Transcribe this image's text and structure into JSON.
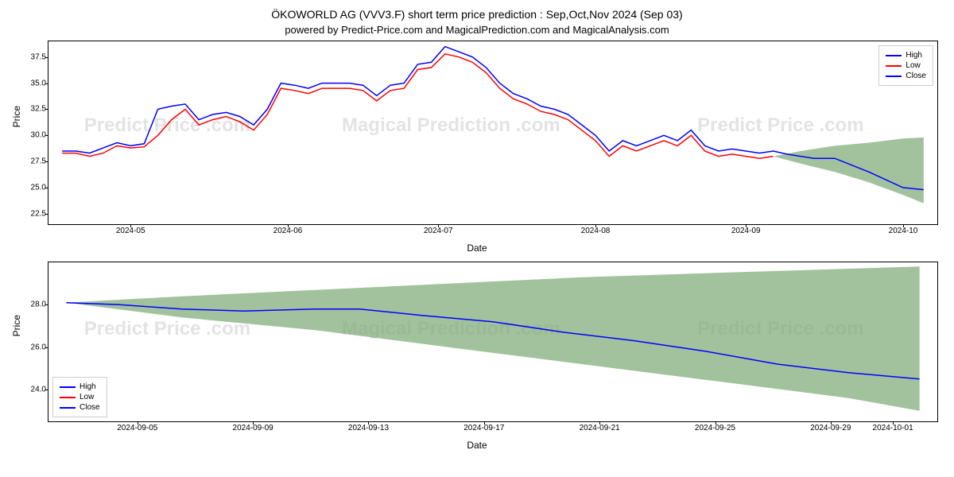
{
  "title": "ÖKOWORLD AG (VVV3.F) short term price prediction : Sep,Oct,Nov 2024 (Sep 03)",
  "subtitle": "powered by Predict-Price.com and MagicalPrediction.com and MagicalAnalysis.com",
  "watermarks": {
    "text1": "Predict Price .com",
    "text2": "Magical Prediction .com",
    "text3": "Predict Price .com"
  },
  "top_chart": {
    "type": "line_with_area",
    "ylabel": "Price",
    "xlabel": "Date",
    "ylim": [
      21.5,
      39
    ],
    "xlim": [
      0,
      130
    ],
    "y_ticks": [
      22.5,
      25.0,
      27.5,
      30.0,
      32.5,
      35.0,
      37.5
    ],
    "x_ticks": [
      {
        "pos": 12,
        "label": "2024-05"
      },
      {
        "pos": 35,
        "label": "2024-06"
      },
      {
        "pos": 57,
        "label": "2024-07"
      },
      {
        "pos": 80,
        "label": "2024-08"
      },
      {
        "pos": 102,
        "label": "2024-09"
      },
      {
        "pos": 125,
        "label": "2024-10"
      }
    ],
    "legend_position": "top-right",
    "legend_items": [
      {
        "color": "#0000ff",
        "label": "High"
      },
      {
        "color": "#ff0000",
        "label": "Low"
      },
      {
        "color": "#0000ff",
        "label": "Close"
      }
    ],
    "series_high": {
      "color": "#0000ff",
      "width": 1.5,
      "points": [
        [
          2,
          28.5
        ],
        [
          4,
          28.5
        ],
        [
          6,
          28.3
        ],
        [
          8,
          28.8
        ],
        [
          10,
          29.3
        ],
        [
          12,
          29.0
        ],
        [
          14,
          29.2
        ],
        [
          16,
          32.5
        ],
        [
          18,
          32.8
        ],
        [
          20,
          33.0
        ],
        [
          22,
          31.5
        ],
        [
          24,
          32.0
        ],
        [
          26,
          32.2
        ],
        [
          28,
          31.8
        ],
        [
          30,
          31.0
        ],
        [
          32,
          32.5
        ],
        [
          34,
          35.0
        ],
        [
          36,
          34.8
        ],
        [
          38,
          34.5
        ],
        [
          40,
          35.0
        ],
        [
          42,
          35.0
        ],
        [
          44,
          35.0
        ],
        [
          46,
          34.8
        ],
        [
          48,
          33.8
        ],
        [
          50,
          34.8
        ],
        [
          52,
          35.0
        ],
        [
          54,
          36.8
        ],
        [
          56,
          37.0
        ],
        [
          58,
          38.5
        ],
        [
          60,
          38.0
        ],
        [
          62,
          37.5
        ],
        [
          64,
          36.5
        ],
        [
          66,
          35.0
        ],
        [
          68,
          34.0
        ],
        [
          70,
          33.5
        ],
        [
          72,
          32.8
        ],
        [
          74,
          32.5
        ],
        [
          76,
          32.0
        ],
        [
          78,
          31.0
        ],
        [
          80,
          30.0
        ],
        [
          82,
          28.5
        ],
        [
          84,
          29.5
        ],
        [
          86,
          29.0
        ],
        [
          88,
          29.5
        ],
        [
          90,
          30.0
        ],
        [
          92,
          29.5
        ],
        [
          94,
          30.5
        ],
        [
          96,
          29.0
        ],
        [
          98,
          28.5
        ],
        [
          100,
          28.7
        ],
        [
          102,
          28.5
        ],
        [
          104,
          28.3
        ],
        [
          106,
          28.5
        ],
        [
          108,
          28.2
        ],
        [
          110,
          28.0
        ],
        [
          112,
          27.8
        ],
        [
          115,
          27.8
        ],
        [
          120,
          26.5
        ],
        [
          125,
          25.0
        ],
        [
          128,
          24.8
        ]
      ]
    },
    "series_low": {
      "color": "#ff0000",
      "width": 1.5,
      "points": [
        [
          2,
          28.3
        ],
        [
          4,
          28.3
        ],
        [
          6,
          28.0
        ],
        [
          8,
          28.3
        ],
        [
          10,
          29.0
        ],
        [
          12,
          28.8
        ],
        [
          14,
          28.9
        ],
        [
          16,
          30.0
        ],
        [
          18,
          31.5
        ],
        [
          20,
          32.5
        ],
        [
          22,
          31.0
        ],
        [
          24,
          31.5
        ],
        [
          26,
          31.8
        ],
        [
          28,
          31.3
        ],
        [
          30,
          30.5
        ],
        [
          32,
          32.0
        ],
        [
          34,
          34.5
        ],
        [
          36,
          34.3
        ],
        [
          38,
          34.0
        ],
        [
          40,
          34.5
        ],
        [
          42,
          34.5
        ],
        [
          44,
          34.5
        ],
        [
          46,
          34.3
        ],
        [
          48,
          33.3
        ],
        [
          50,
          34.3
        ],
        [
          52,
          34.5
        ],
        [
          54,
          36.3
        ],
        [
          56,
          36.5
        ],
        [
          58,
          37.8
        ],
        [
          60,
          37.5
        ],
        [
          62,
          37.0
        ],
        [
          64,
          36.0
        ],
        [
          66,
          34.5
        ],
        [
          68,
          33.5
        ],
        [
          70,
          33.0
        ],
        [
          72,
          32.3
        ],
        [
          74,
          32.0
        ],
        [
          76,
          31.5
        ],
        [
          78,
          30.5
        ],
        [
          80,
          29.5
        ],
        [
          82,
          28.0
        ],
        [
          84,
          29.0
        ],
        [
          86,
          28.5
        ],
        [
          88,
          29.0
        ],
        [
          90,
          29.5
        ],
        [
          92,
          29.0
        ],
        [
          94,
          30.0
        ],
        [
          96,
          28.5
        ],
        [
          98,
          28.0
        ],
        [
          100,
          28.2
        ],
        [
          102,
          28.0
        ],
        [
          104,
          27.8
        ],
        [
          106,
          28.0
        ]
      ]
    },
    "forecast_area": {
      "color": "#7aa874",
      "opacity": 0.7,
      "upper": [
        [
          106,
          28.0
        ],
        [
          110,
          28.5
        ],
        [
          115,
          29.0
        ],
        [
          120,
          29.3
        ],
        [
          125,
          29.7
        ],
        [
          128,
          29.8
        ]
      ],
      "lower": [
        [
          106,
          28.0
        ],
        [
          110,
          27.3
        ],
        [
          115,
          26.5
        ],
        [
          120,
          25.5
        ],
        [
          125,
          24.3
        ],
        [
          128,
          23.5
        ]
      ]
    },
    "background_color": "#ffffff"
  },
  "bottom_chart": {
    "type": "line_with_area",
    "ylabel": "Price",
    "xlabel": "Date",
    "ylim": [
      22.5,
      30
    ],
    "xlim": [
      0,
      100
    ],
    "y_ticks": [
      24,
      26,
      28
    ],
    "x_ticks": [
      {
        "pos": 10,
        "label": "2024-09-05"
      },
      {
        "pos": 23,
        "label": "2024-09-09"
      },
      {
        "pos": 36,
        "label": "2024-09-13"
      },
      {
        "pos": 49,
        "label": "2024-09-17"
      },
      {
        "pos": 62,
        "label": "2024-09-21"
      },
      {
        "pos": 75,
        "label": "2024-09-25"
      },
      {
        "pos": 88,
        "label": "2024-09-29"
      },
      {
        "pos": 95,
        "label": "2024-10-01"
      }
    ],
    "legend_position": "bottom-left",
    "legend_items": [
      {
        "color": "#0000ff",
        "label": "High"
      },
      {
        "color": "#ff0000",
        "label": "Low"
      },
      {
        "color": "#0000ff",
        "label": "Close"
      }
    ],
    "series_close": {
      "color": "#0000ff",
      "width": 1.5,
      "points": [
        [
          2,
          28.1
        ],
        [
          8,
          28.0
        ],
        [
          15,
          27.8
        ],
        [
          22,
          27.7
        ],
        [
          30,
          27.8
        ],
        [
          35,
          27.8
        ],
        [
          42,
          27.5
        ],
        [
          50,
          27.2
        ],
        [
          58,
          26.7
        ],
        [
          66,
          26.3
        ],
        [
          74,
          25.8
        ],
        [
          82,
          25.2
        ],
        [
          90,
          24.8
        ],
        [
          98,
          24.5
        ]
      ]
    },
    "forecast_area": {
      "color": "#7aa874",
      "opacity": 0.7,
      "upper": [
        [
          2,
          28.1
        ],
        [
          15,
          28.4
        ],
        [
          30,
          28.7
        ],
        [
          45,
          29.0
        ],
        [
          60,
          29.3
        ],
        [
          75,
          29.5
        ],
        [
          90,
          29.7
        ],
        [
          98,
          29.8
        ]
      ],
      "lower": [
        [
          2,
          28.1
        ],
        [
          15,
          27.4
        ],
        [
          30,
          26.8
        ],
        [
          45,
          26.0
        ],
        [
          60,
          25.2
        ],
        [
          75,
          24.4
        ],
        [
          90,
          23.6
        ],
        [
          98,
          23.0
        ]
      ]
    },
    "background_color": "#ffffff"
  }
}
